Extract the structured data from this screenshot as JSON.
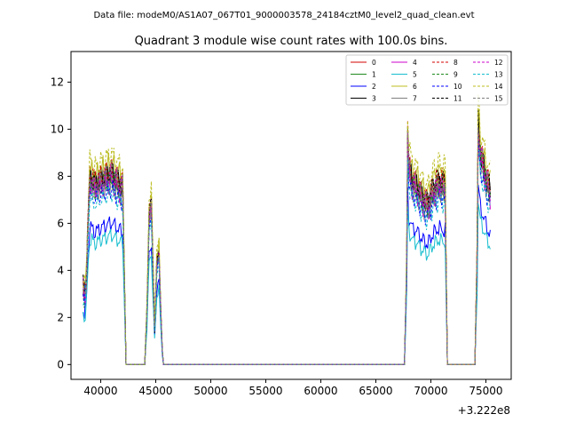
{
  "figure": {
    "suptitle": "Data file: modeM0/AS1A07_067T01_9000003578_24184cztM0_level2_quad_clean.evt"
  },
  "chart_data": {
    "type": "line",
    "title": "Quadrant 3 module wise count rates with 100.0s bins.",
    "xlabel": "",
    "ylabel": "",
    "x_offset_label": "+3.222e8",
    "xlim": [
      37300,
      77300
    ],
    "ylim": [
      -0.63,
      13.3
    ],
    "xticks": [
      40000,
      45000,
      50000,
      55000,
      60000,
      65000,
      70000,
      75000
    ],
    "xtick_labels": [
      "40000",
      "45000",
      "50000",
      "55000",
      "60000",
      "65000",
      "70000",
      "75000"
    ],
    "yticks": [
      0,
      2,
      4,
      6,
      8,
      10,
      12
    ],
    "ytick_labels": [
      "0",
      "2",
      "4",
      "6",
      "8",
      "10",
      "12"
    ],
    "grid": false,
    "legend": {
      "loc": "upper right",
      "ncol": 4
    },
    "segment_profile": {
      "seg1_x": [
        38400,
        38550,
        38700,
        38850,
        39000,
        39200,
        39500,
        40000,
        40500,
        41000,
        41500,
        42000
      ],
      "seg1_shape": [
        0.42,
        0.36,
        0.48,
        0.78,
        1.0,
        1.0,
        0.97,
        1.0,
        1.02,
        1.04,
        1.0,
        0.97
      ],
      "seg2_x": [
        44200,
        44400,
        44600,
        44750,
        44900,
        45100,
        45300,
        45450
      ],
      "seg2_shape": [
        0.3,
        0.82,
        0.88,
        0.52,
        0.2,
        0.55,
        0.62,
        0.3
      ],
      "seg3_x": [
        67800,
        67900,
        68000,
        68300,
        68700,
        69200,
        69700,
        70200,
        70700,
        71300
      ],
      "seg3_shape": [
        0.55,
        1.26,
        1.08,
        1.0,
        0.98,
        0.92,
        0.88,
        0.96,
        1.0,
        0.98
      ],
      "seg4_x": [
        74200,
        74300,
        74500,
        74800,
        75100,
        75400
      ],
      "seg4_shape": [
        0.6,
        1.32,
        1.15,
        1.08,
        1.0,
        0.95
      ]
    },
    "series": [
      {
        "name": "0",
        "level": 7.9,
        "color": "#d40000",
        "dash": "solid"
      },
      {
        "name": "1",
        "level": 7.7,
        "color": "#1f8a1f",
        "dash": "solid"
      },
      {
        "name": "2",
        "level": 5.8,
        "color": "#0000ff",
        "dash": "solid"
      },
      {
        "name": "3",
        "level": 7.8,
        "color": "#000000",
        "dash": "solid"
      },
      {
        "name": "4",
        "level": 7.5,
        "color": "#cc00cc",
        "dash": "solid"
      },
      {
        "name": "5",
        "level": 5.3,
        "color": "#17becf",
        "dash": "solid"
      },
      {
        "name": "6",
        "level": 8.2,
        "color": "#bcbd22",
        "dash": "solid"
      },
      {
        "name": "7",
        "level": 7.4,
        "color": "#7f7f7f",
        "dash": "solid"
      },
      {
        "name": "8",
        "level": 8.0,
        "color": "#d40000",
        "dash": "dashed"
      },
      {
        "name": "9",
        "level": 7.6,
        "color": "#1f8a1f",
        "dash": "dashed"
      },
      {
        "name": "10",
        "level": 7.2,
        "color": "#0000ff",
        "dash": "dashed"
      },
      {
        "name": "11",
        "level": 7.9,
        "color": "#000000",
        "dash": "dashed"
      },
      {
        "name": "12",
        "level": 7.7,
        "color": "#cc00cc",
        "dash": "dashed"
      },
      {
        "name": "13",
        "level": 7.0,
        "color": "#17becf",
        "dash": "dashed"
      },
      {
        "name": "14",
        "level": 8.6,
        "color": "#bcbd22",
        "dash": "dashed"
      },
      {
        "name": "15",
        "level": 7.8,
        "color": "#7f7f7f",
        "dash": "dashed"
      }
    ]
  }
}
